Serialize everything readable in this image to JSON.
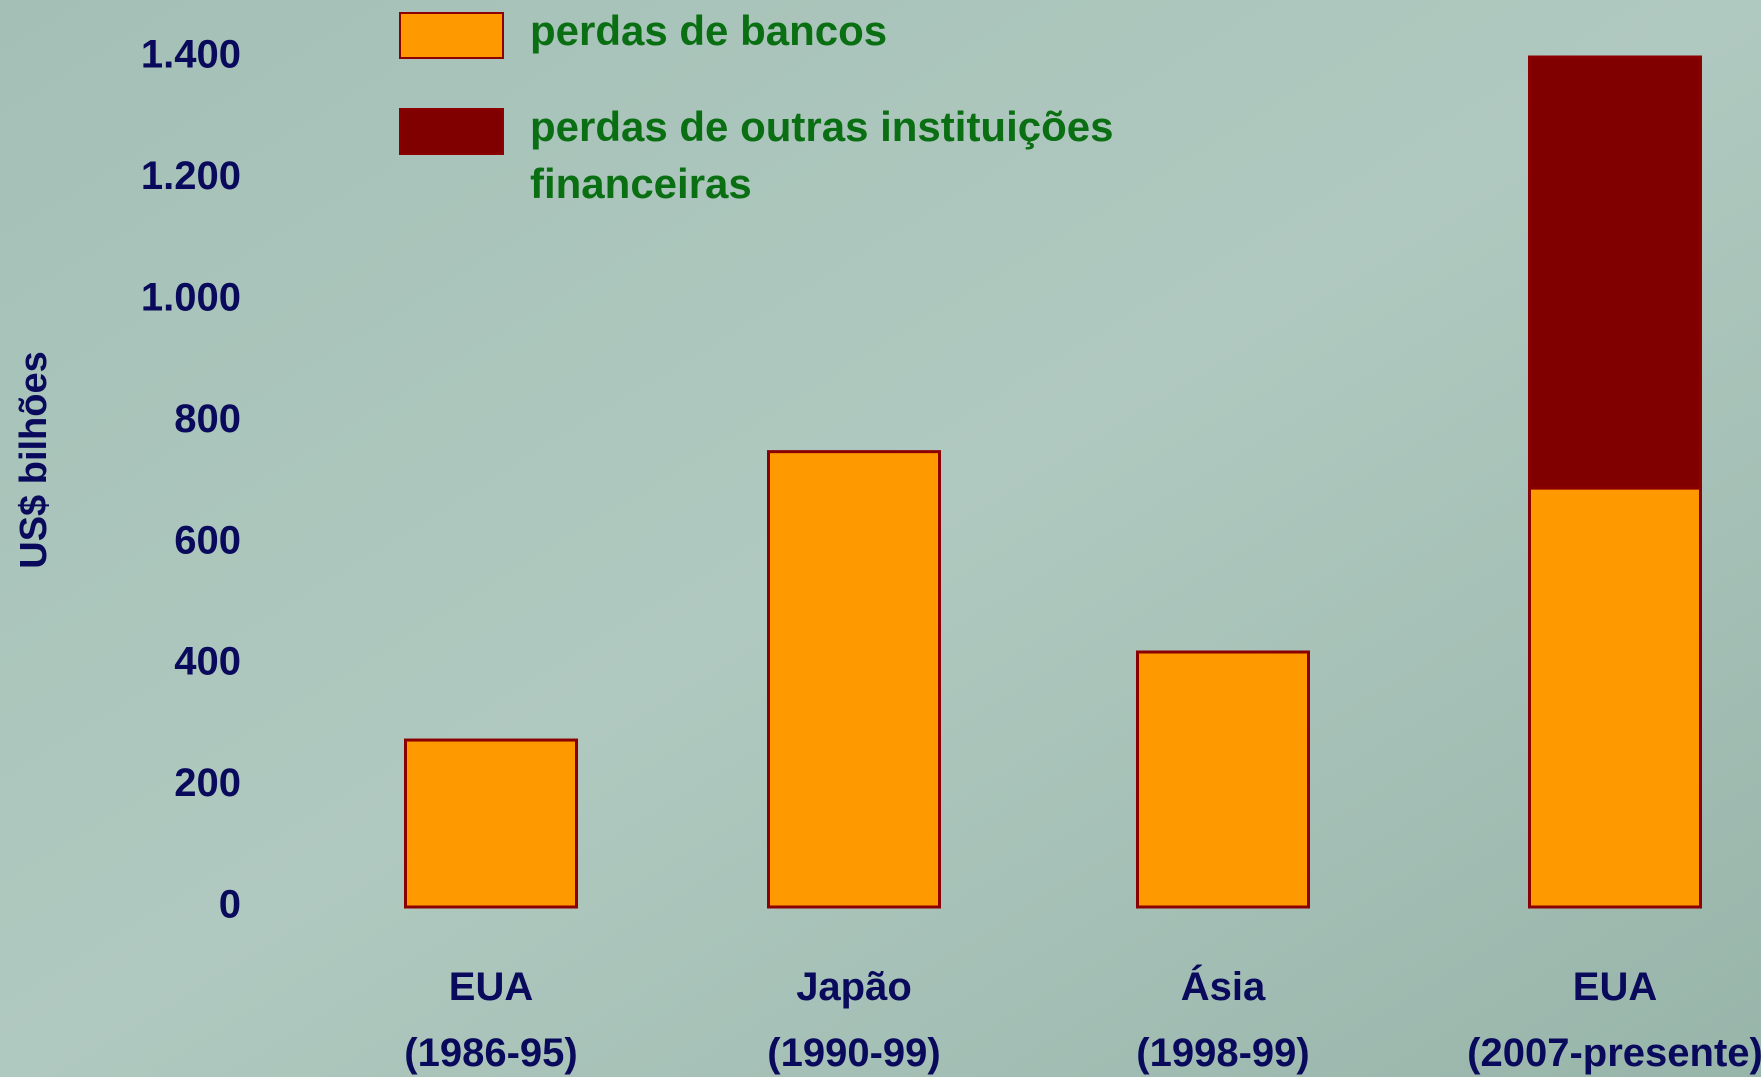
{
  "chart_data": {
    "type": "stacked_bar",
    "y_label": "US$ bilhões",
    "categories": [
      "EUA\n(1986-95)",
      "Japão\n(1990-99)",
      "Ásia\n(1998-99)",
      "EUA\n(2007-presente)"
    ],
    "series": [
      {
        "name": "perdas de bancos",
        "color": "#ff9900",
        "values": [
          275,
          750,
          420,
          690
        ]
      },
      {
        "name": "perdas de outras instituições\nfinanceiras",
        "color": "#800000",
        "values": [
          null,
          null,
          null,
          710
        ]
      }
    ],
    "ylim": [
      0,
      1400
    ],
    "yticks": [
      0,
      200,
      400,
      600,
      800,
      {
        "value": 1000,
        "label": "1.000"
      },
      {
        "value": 1200,
        "label": "1.200"
      },
      {
        "value": 1400,
        "label": "1.400"
      }
    ],
    "grid": false
  }
}
